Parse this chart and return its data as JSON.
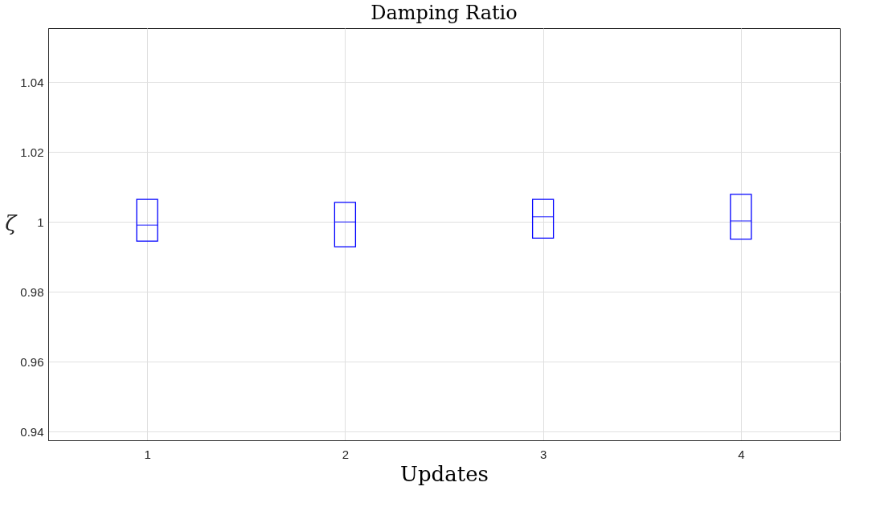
{
  "chart_data": {
    "type": "box",
    "title": "Damping Ratio",
    "xlabel": "Updates",
    "ylabel": "ζ",
    "categories": [
      "1",
      "2",
      "3",
      "4"
    ],
    "series": [
      {
        "color": "#0000ff",
        "boxes": [
          {
            "low": 0.9945,
            "q1": 0.9945,
            "median": 0.9991,
            "q3": 1.0065,
            "high": 1.0065
          },
          {
            "low": 0.9929,
            "q1": 0.9929,
            "median": 1.0,
            "q3": 1.0056,
            "high": 1.0056
          },
          {
            "low": 0.9954,
            "q1": 0.9954,
            "median": 1.0015,
            "q3": 1.0065,
            "high": 1.0065
          },
          {
            "low": 0.9951,
            "q1": 0.9951,
            "median": 1.0003,
            "q3": 1.0079,
            "high": 1.0079
          }
        ]
      }
    ],
    "ylim": [
      0.9375,
      1.0555
    ],
    "yticks": [
      0.94,
      0.96,
      0.98,
      1,
      1.02,
      1.04
    ],
    "grid": true
  }
}
